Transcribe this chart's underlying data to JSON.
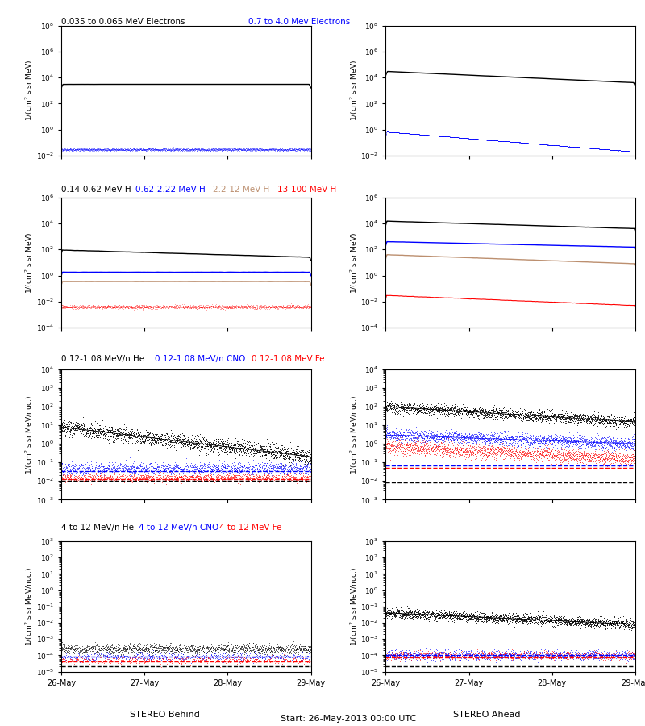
{
  "title_row0": [
    "0.035 to 0.065 MeV Electrons",
    "0.7 to 4.0 Mev Electrons"
  ],
  "title_row0_colors": [
    "black",
    "blue"
  ],
  "title_row1": [
    "0.14-0.62 MeV H",
    "0.62-2.22 MeV H",
    "2.2-12 MeV H",
    "13-100 MeV H"
  ],
  "title_row1_colors": [
    "black",
    "blue",
    "#bc8f6f",
    "red"
  ],
  "title_row2": [
    "0.12-1.08 MeV/n He",
    "0.12-1.08 MeV/n CNO",
    "0.12-1.08 MeV Fe"
  ],
  "title_row2_colors": [
    "black",
    "blue",
    "red"
  ],
  "title_row3": [
    "4 to 12 MeV/n He",
    "4 to 12 MeV/n CNO",
    "4 to 12 MeV Fe"
  ],
  "title_row3_colors": [
    "black",
    "blue",
    "red"
  ],
  "xlabel_left": "STEREO Behind",
  "xlabel_right": "STEREO Ahead",
  "xlabel_center": "Start: 26-May-2013 00:00 UTC",
  "xtick_labels": [
    "26-May",
    "27-May",
    "28-May",
    "29-May"
  ],
  "seed": 42
}
